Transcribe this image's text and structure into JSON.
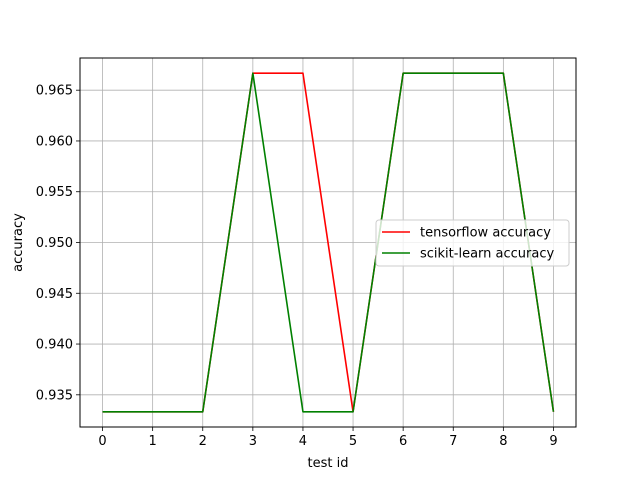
{
  "chart_data": {
    "type": "line",
    "title": "",
    "xlabel": "test id",
    "ylabel": "accuracy",
    "x": [
      0,
      1,
      2,
      3,
      4,
      5,
      6,
      7,
      8,
      9
    ],
    "xticks": [
      "0",
      "1",
      "2",
      "3",
      "4",
      "5",
      "6",
      "7",
      "8",
      "9"
    ],
    "yticks": [
      0.935,
      0.94,
      0.945,
      0.95,
      0.955,
      0.96,
      0.965
    ],
    "ytick_labels": [
      "0.935",
      "0.940",
      "0.945",
      "0.950",
      "0.955",
      "0.960",
      "0.965"
    ],
    "xlim": [
      -0.45,
      9.45
    ],
    "ylim": [
      0.93183,
      0.96817
    ],
    "grid": true,
    "legend_position": "center-right",
    "series": [
      {
        "name": "tensorflow accuracy",
        "color": "#ff0000",
        "values": [
          0.93333,
          0.93333,
          0.93333,
          0.96667,
          0.96667,
          0.93333,
          0.96667,
          0.96667,
          0.96667,
          0.93333
        ]
      },
      {
        "name": "scikit-learn accuracy",
        "color": "#008000",
        "values": [
          0.93333,
          0.93333,
          0.93333,
          0.96667,
          0.93333,
          0.93333,
          0.96667,
          0.96667,
          0.96667,
          0.93333
        ]
      }
    ]
  }
}
